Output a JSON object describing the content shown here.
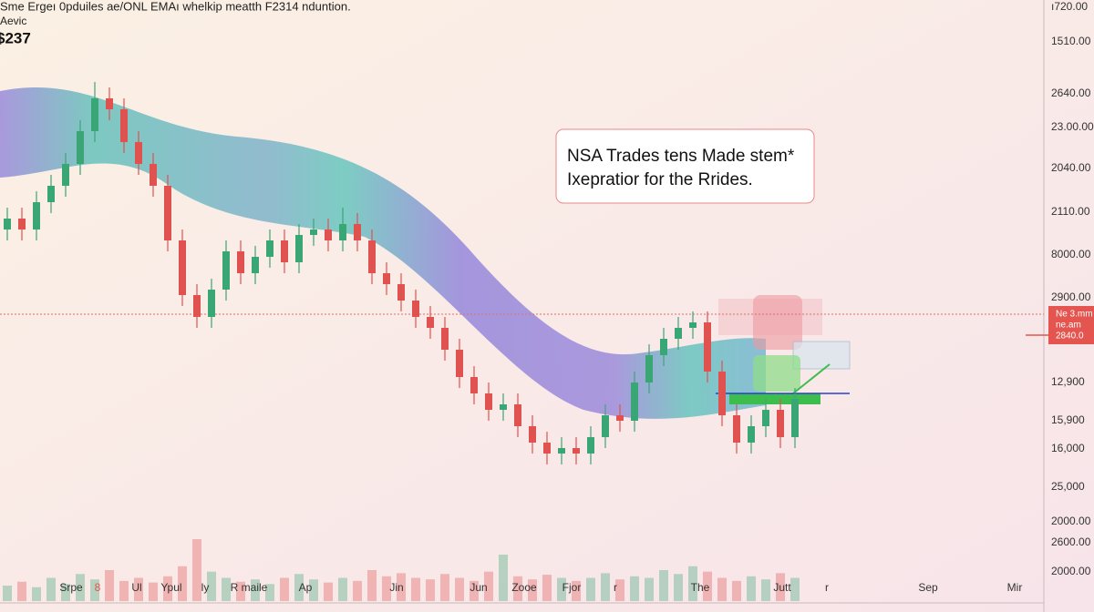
{
  "header": {
    "title": "Sme Ergeı 0pduiles ae/ONL EMAı whelkip meatth F2314 nduntion.",
    "subtitle": "Aevic",
    "price": "$237"
  },
  "annotation": {
    "lines": [
      "NSA Trades tens Made stem*",
      "Ixepratior for the Rrides."
    ]
  },
  "price_axis": {
    "labels": [
      "ı720.00",
      "1510.00",
      "2640.00",
      "23.00.00",
      "2040.00",
      "2110.00",
      "8000.00",
      "2900.00",
      "12,900",
      "15,900",
      "16,000",
      "25,000",
      "2000.00",
      "2600.00",
      "2000.00"
    ]
  },
  "price_tag": {
    "lines": [
      "Ne 3.mm",
      "ne.am",
      "2840.0"
    ]
  },
  "time_axis": {
    "labels": [
      "Srpe",
      "8",
      "Ul",
      "Ypul",
      "ly",
      "R maile",
      "Ap",
      "Jin",
      "Jun",
      "Zooe",
      "Fjor",
      "r",
      "The",
      "Jutt",
      "r",
      "Sep",
      "Mir"
    ]
  },
  "chart_data": {
    "type": "candlestick",
    "ylim": [
      0,
      100
    ],
    "price_line": 42.5,
    "target_line": 28,
    "up_color": "#3aa676",
    "down_color": "#e0524f",
    "open": [
      58,
      60,
      58,
      63,
      66,
      70,
      76,
      82,
      80,
      74,
      70,
      66,
      56,
      46,
      42,
      47,
      54,
      50,
      53,
      56,
      52,
      57,
      58,
      56,
      59,
      56,
      50,
      48,
      45,
      42,
      40,
      36,
      31,
      28,
      25,
      26,
      22,
      19,
      17,
      18,
      17,
      20,
      24,
      23,
      30,
      35,
      38,
      40,
      41,
      32,
      24,
      19,
      22,
      25,
      20
    ],
    "high": [
      62,
      62,
      65,
      68,
      72,
      78,
      85,
      84,
      82,
      76,
      72,
      68,
      58,
      48,
      49,
      56,
      56,
      55,
      58,
      58,
      59,
      60,
      60,
      62,
      61,
      58,
      52,
      50,
      47,
      44,
      42,
      38,
      33,
      30,
      28,
      28,
      24,
      21,
      20,
      20,
      22,
      26,
      26,
      32,
      37,
      40,
      42,
      43,
      43,
      34,
      26,
      24,
      27,
      27,
      29
    ],
    "low": [
      56,
      56,
      56,
      61,
      64,
      68,
      74,
      78,
      72,
      68,
      64,
      54,
      44,
      40,
      40,
      45,
      48,
      48,
      51,
      50,
      50,
      55,
      54,
      54,
      54,
      48,
      46,
      43,
      40,
      38,
      34,
      29,
      26,
      23,
      23,
      20,
      17,
      15,
      15,
      15,
      15,
      18,
      21,
      21,
      28,
      33,
      36,
      38,
      30,
      22,
      17,
      17,
      20,
      18,
      18
    ],
    "close": [
      60,
      58,
      63,
      66,
      70,
      76,
      82,
      80,
      74,
      70,
      66,
      56,
      46,
      42,
      47,
      54,
      50,
      53,
      56,
      52,
      57,
      58,
      56,
      59,
      56,
      50,
      48,
      45,
      42,
      40,
      36,
      31,
      28,
      25,
      26,
      22,
      19,
      17,
      18,
      17,
      20,
      24,
      23,
      30,
      35,
      38,
      40,
      41,
      32,
      24,
      19,
      22,
      25,
      20,
      27
    ],
    "volume": [
      20,
      25,
      18,
      30,
      22,
      35,
      28,
      40,
      26,
      30,
      24,
      32,
      45,
      80,
      38,
      30,
      25,
      28,
      22,
      30,
      35,
      28,
      24,
      30,
      26,
      40,
      32,
      36,
      30,
      28,
      35,
      30,
      26,
      38,
      60,
      32,
      28,
      34,
      30,
      26,
      30,
      36,
      28,
      32,
      30,
      40,
      35,
      45,
      38,
      30,
      26,
      32,
      28,
      36,
      30
    ],
    "volume_lim": [
      0,
      100
    ]
  }
}
